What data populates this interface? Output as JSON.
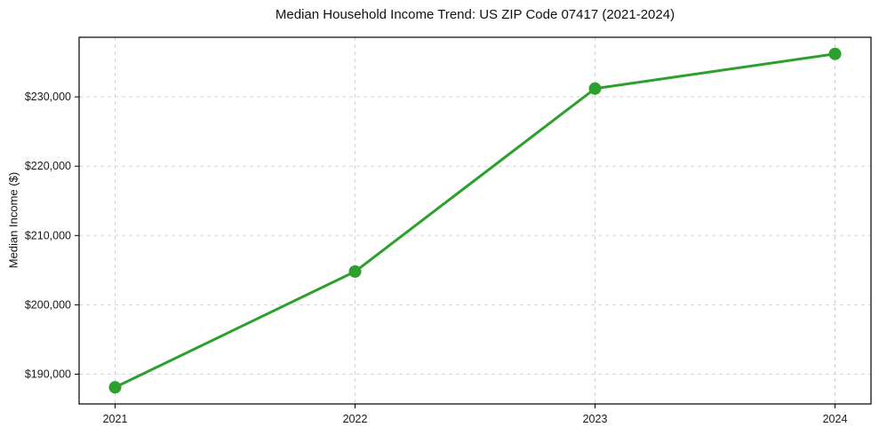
{
  "chart_data": {
    "type": "line",
    "title": "Median Household Income Trend: US ZIP Code 07417 (2021-2024)",
    "xlabel": "",
    "ylabel": "Median Income ($)",
    "x": [
      2021,
      2022,
      2023,
      2024
    ],
    "x_tick_labels": [
      "2021",
      "2022",
      "2023",
      "2024"
    ],
    "series": [
      {
        "name": "Median Household Income",
        "values": [
          188100,
          204800,
          231200,
          236200
        ],
        "color": "#2ca02c",
        "marker": "circle"
      }
    ],
    "y_ticks": [
      190000,
      200000,
      210000,
      220000,
      230000
    ],
    "y_tick_labels": [
      "$190,000",
      "$200,000",
      "$210,000",
      "$220,000",
      "$230,000"
    ],
    "xlim": [
      2020.85,
      2024.15
    ],
    "ylim": [
      185700,
      238600
    ],
    "grid": "dashed, both axes",
    "grid_color": "#d4d4d4",
    "axes_color": "#000000",
    "background": "#ffffff",
    "legend": "none"
  }
}
